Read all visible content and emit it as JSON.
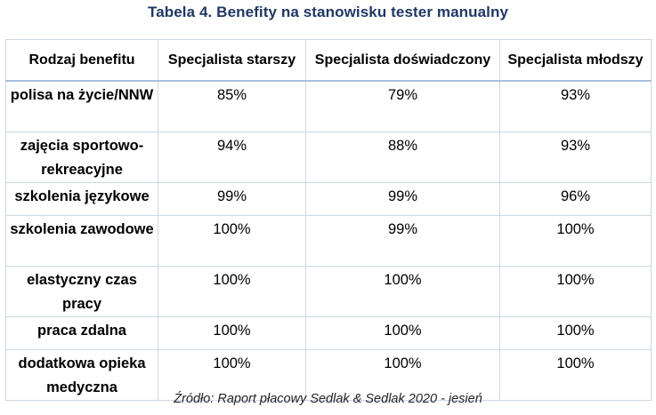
{
  "title": "Tabela 4. Benefity na stanowisku tester manualny",
  "table": {
    "headers": [
      "Rodzaj benefitu",
      "Specjalista starszy",
      "Specjalista doświadczony",
      "Specjalista młodszy"
    ],
    "rows": [
      {
        "benefit": "polisa na życie/NNW",
        "values": [
          "85%",
          "79%",
          "93%"
        ]
      },
      {
        "benefit": "zajęcia sportowo-rekreacyjne",
        "values": [
          "94%",
          "88%",
          "93%"
        ]
      },
      {
        "benefit": "szkolenia językowe",
        "values": [
          "99%",
          "99%",
          "96%"
        ]
      },
      {
        "benefit": "szkolenia zawodowe",
        "values": [
          "100%",
          "99%",
          "100%"
        ]
      },
      {
        "benefit": "elastyczny czas pracy",
        "values": [
          "100%",
          "100%",
          "100%"
        ]
      },
      {
        "benefit": "praca zdalna",
        "values": [
          "100%",
          "100%",
          "100%"
        ]
      },
      {
        "benefit": "dodatkowa opieka medyczna",
        "values": [
          "100%",
          "100%",
          "100%"
        ]
      }
    ]
  },
  "source": "Źródło: Raport płacowy Sedlak & Sedlak 2020 - jesień",
  "colors": {
    "title": "#1F3864",
    "border": "#cdd8e6"
  }
}
